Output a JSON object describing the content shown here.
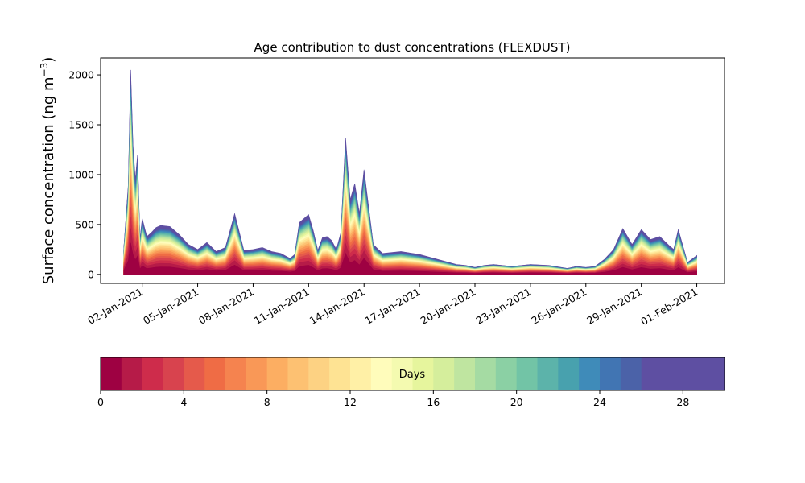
{
  "chart_data": {
    "type": "area",
    "stacked": true,
    "title": "Age contribution to dust concentrations (FLEXDUST)",
    "ylabel_main": "Surface concentration (ng m",
    "ylabel_sup": "−3",
    "ylabel_close": ")",
    "ylim": [
      -90,
      2170
    ],
    "yticks": [
      {
        "value": 0,
        "label": "0"
      },
      {
        "value": 500,
        "label": "500"
      },
      {
        "value": 1000,
        "label": "1000"
      },
      {
        "value": 1500,
        "label": "1500"
      },
      {
        "value": 2000,
        "label": "2000"
      }
    ],
    "xlim": [
      "2020-12-30T18:00",
      "2021-02-02T12:00"
    ],
    "xticks": [
      {
        "value": "2021-01-02",
        "label": "02-Jan-2021"
      },
      {
        "value": "2021-01-05",
        "label": "05-Jan-2021"
      },
      {
        "value": "2021-01-08",
        "label": "08-Jan-2021"
      },
      {
        "value": "2021-01-11",
        "label": "11-Jan-2021"
      },
      {
        "value": "2021-01-14",
        "label": "14-Jan-2021"
      },
      {
        "value": "2021-01-17",
        "label": "17-Jan-2021"
      },
      {
        "value": "2021-01-20",
        "label": "20-Jan-2021"
      },
      {
        "value": "2021-01-23",
        "label": "23-Jan-2021"
      },
      {
        "value": "2021-01-26",
        "label": "26-Jan-2021"
      },
      {
        "value": "2021-01-29",
        "label": "29-Jan-2021"
      },
      {
        "value": "2021-02-01",
        "label": "01-Feb-2021"
      }
    ],
    "total": {
      "x": [
        "2021-01-01T00:00",
        "2021-01-01T06:00",
        "2021-01-01T09:00",
        "2021-01-01T12:00",
        "2021-01-01T15:00",
        "2021-01-01T18:00",
        "2021-01-01T21:00",
        "2021-01-02T00:00",
        "2021-01-02T06:00",
        "2021-01-02T12:00",
        "2021-01-02T18:00",
        "2021-01-03T00:00",
        "2021-01-03T12:00",
        "2021-01-04T00:00",
        "2021-01-04T12:00",
        "2021-01-05T00:00",
        "2021-01-05T12:00",
        "2021-01-06T00:00",
        "2021-01-06T12:00",
        "2021-01-07T00:00",
        "2021-01-07T12:00",
        "2021-01-08T00:00",
        "2021-01-08T12:00",
        "2021-01-09T00:00",
        "2021-01-09T12:00",
        "2021-01-10T00:00",
        "2021-01-10T06:00",
        "2021-01-10T12:00",
        "2021-01-11T00:00",
        "2021-01-11T06:00",
        "2021-01-11T12:00",
        "2021-01-11T18:00",
        "2021-01-12T00:00",
        "2021-01-12T06:00",
        "2021-01-12T12:00",
        "2021-01-12T18:00",
        "2021-01-13T00:00",
        "2021-01-13T06:00",
        "2021-01-13T12:00",
        "2021-01-13T18:00",
        "2021-01-14T00:00",
        "2021-01-14T12:00",
        "2021-01-15T00:00",
        "2021-01-16T00:00",
        "2021-01-17T00:00",
        "2021-01-18T00:00",
        "2021-01-19T00:00",
        "2021-01-19T12:00",
        "2021-01-20T00:00",
        "2021-01-20T12:00",
        "2021-01-21T00:00",
        "2021-01-22T00:00",
        "2021-01-23T00:00",
        "2021-01-24T00:00",
        "2021-01-25T00:00",
        "2021-01-25T12:00",
        "2021-01-26T00:00",
        "2021-01-26T12:00",
        "2021-01-27T00:00",
        "2021-01-27T12:00",
        "2021-01-28T00:00",
        "2021-01-28T12:00",
        "2021-01-29T00:00",
        "2021-01-29T12:00",
        "2021-01-30T00:00",
        "2021-01-30T12:00",
        "2021-01-30T18:00",
        "2021-01-31T00:00",
        "2021-01-31T12:00",
        "2021-02-01T00:00"
      ],
      "y": [
        250,
        900,
        2050,
        1300,
        950,
        1200,
        350,
        560,
        380,
        420,
        470,
        490,
        480,
        400,
        300,
        250,
        320,
        230,
        270,
        610,
        240,
        250,
        270,
        230,
        210,
        160,
        200,
        520,
        600,
        440,
        240,
        370,
        380,
        340,
        250,
        420,
        1370,
        750,
        910,
        610,
        1050,
        300,
        210,
        230,
        200,
        150,
        100,
        90,
        70,
        90,
        100,
        80,
        100,
        90,
        60,
        80,
        70,
        80,
        150,
        250,
        460,
        300,
        450,
        350,
        380,
        290,
        250,
        450,
        120,
        190
      ]
    },
    "colorbar": {
      "label": "Days",
      "range": [
        0,
        30
      ],
      "bins": 30,
      "ticks": [
        0,
        4,
        8,
        12,
        16,
        20,
        24,
        28
      ],
      "colormap": "Spectral",
      "colors": [
        "#9e0142",
        "#b61b48",
        "#ce2c4b",
        "#d8434e",
        "#e55a4b",
        "#ef6c45",
        "#f5834f",
        "#f99857",
        "#fcae62",
        "#fdc172",
        "#fdd283",
        "#fee393",
        "#fff0a6",
        "#fffcbb",
        "#f4fab0",
        "#e6f59d",
        "#d5ee9c",
        "#bfe5a0",
        "#a5dba3",
        "#8bd0a4",
        "#72c4a6",
        "#5cb3aa",
        "#48a1ae",
        "#3f8bb9",
        "#4175b3",
        "#4b62a8",
        "#5e4fa2",
        "#5e4fa2",
        "#5e4fa2",
        "#5e4fa2"
      ]
    }
  }
}
